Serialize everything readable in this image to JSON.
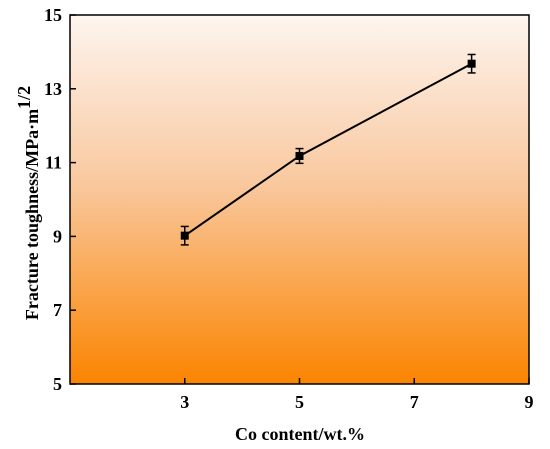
{
  "chart_data": {
    "type": "line",
    "x": [
      3,
      5,
      8
    ],
    "series": [
      {
        "values": [
          9.02,
          11.18,
          13.68
        ],
        "errors": [
          0.25,
          0.2,
          0.25
        ]
      }
    ],
    "xlabel": "Co content/wt.%",
    "ylabel_main": "Fracture toughness/MPa·m",
    "ylabel_sup": "1/2",
    "xlim": [
      1,
      9
    ],
    "ylim": [
      5,
      15
    ],
    "xticks": [
      "3",
      "5",
      "7",
      "9"
    ],
    "yticks": [
      "5",
      "7",
      "9",
      "11",
      "13",
      "15"
    ],
    "xtick_values": [
      3,
      5,
      7,
      9
    ],
    "ytick_values": [
      5,
      7,
      9,
      11,
      13,
      15
    ],
    "grid": false,
    "colors": {
      "background_top": "#fdf5ef",
      "background_bottom": "#fa8400",
      "line": "#000000",
      "marker": "#000000"
    }
  }
}
